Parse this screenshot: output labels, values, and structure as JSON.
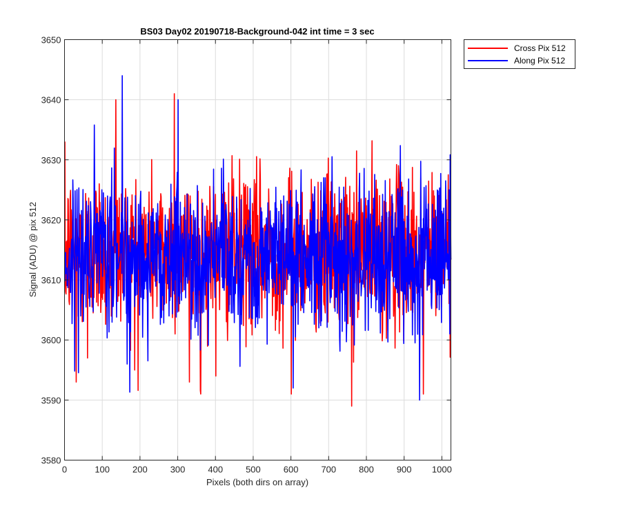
{
  "chart_data": {
    "type": "line",
    "title": "BS03 Day02 20190718-Background-042 int time = 3 sec",
    "xlabel": "Pixels (both dirs on array)",
    "ylabel": "Signal (ADU) @ pix 512",
    "xlim": [
      0,
      1024
    ],
    "ylim": [
      3580,
      3650
    ],
    "xticks": [
      0,
      100,
      200,
      300,
      400,
      500,
      600,
      700,
      800,
      900,
      1000
    ],
    "yticks": [
      3580,
      3590,
      3600,
      3610,
      3620,
      3630,
      3640,
      3650
    ],
    "grid": true,
    "legend_position": "outside-top-right",
    "series": [
      {
        "name": "Cross Pix 512",
        "color": "#ff0000",
        "n_points": 1024,
        "noise_mean": 3615,
        "noise_sd": 6.5,
        "notable_points": [
          [
            2,
            3608
          ],
          [
            30,
            3593
          ],
          [
            60,
            3597
          ],
          [
            135,
            3640
          ],
          [
            185,
            3595
          ],
          [
            290,
            3641
          ],
          [
            330,
            3593
          ],
          [
            360,
            3591
          ],
          [
            400,
            3594
          ],
          [
            600,
            3591
          ],
          [
            760,
            3589
          ],
          [
            950,
            3591
          ]
        ]
      },
      {
        "name": "Along Pix 512",
        "color": "#0000ff",
        "n_points": 1024,
        "noise_mean": 3614,
        "noise_sd": 6.3,
        "notable_points": [
          [
            5,
            3612
          ],
          [
            152,
            3644
          ],
          [
            165,
            3596
          ],
          [
            300,
            3640
          ],
          [
            605,
            3592
          ],
          [
            940,
            3590
          ],
          [
            1020,
            3601
          ]
        ]
      }
    ]
  }
}
